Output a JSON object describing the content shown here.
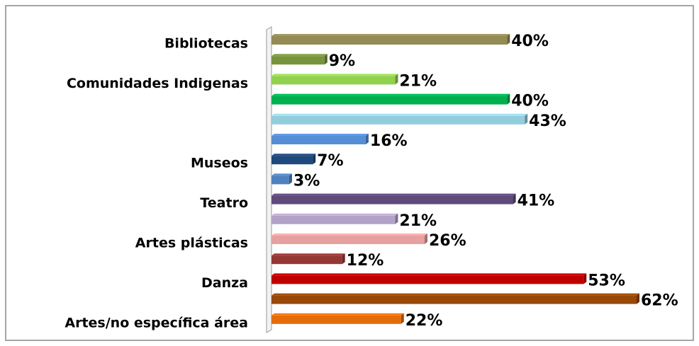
{
  "chart_data": {
    "type": "bar",
    "orientation": "horizontal",
    "categories": [
      "Bibliotecas",
      null,
      "Comunidades Indigenas",
      null,
      null,
      null,
      "Museos",
      null,
      "Teatro",
      null,
      "Artes plásticas",
      null,
      "Danza",
      null,
      "Artes/no específica área"
    ],
    "values": [
      40,
      9,
      21,
      40,
      43,
      16,
      7,
      3,
      41,
      21,
      26,
      12,
      53,
      62,
      22
    ],
    "value_labels": [
      "40%",
      "9%",
      "21%",
      "40%",
      "43%",
      "16%",
      "7%",
      "3%",
      "41%",
      "21%",
      "26%",
      "12%",
      "53%",
      "62%",
      "22%"
    ],
    "colors": [
      "#948a54",
      "#77933c",
      "#92d050",
      "#00b050",
      "#92cddc",
      "#558ed5",
      "#1f497d",
      "#4f81bd",
      "#604a7b",
      "#b3a2c7",
      "#e6a0a0",
      "#953735",
      "#c00000",
      "#984807",
      "#e46c0a"
    ]
  }
}
